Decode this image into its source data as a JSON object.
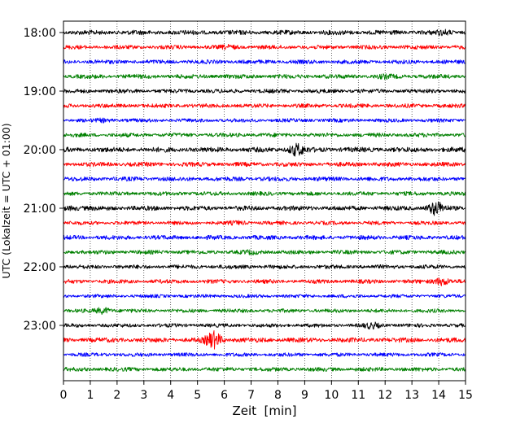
{
  "chart_data": {
    "type": "line",
    "title": "",
    "xlabel": "Zeit  [min]",
    "ylabel": "UTC (Lokalzeit = UTC + 01:00)",
    "xlim": [
      0,
      15
    ],
    "x_ticks": [
      "0",
      "1",
      "2",
      "3",
      "4",
      "5",
      "6",
      "7",
      "8",
      "9",
      "10",
      "11",
      "12",
      "13",
      "14",
      "15"
    ],
    "y_ticks": [
      "18:00",
      "19:00",
      "20:00",
      "21:00",
      "22:00",
      "23:00"
    ],
    "grid": "vertical dotted lines at each minute",
    "trace_interval_min": 15,
    "color_cycle": [
      "#000000",
      "#ff0000",
      "#0000ff",
      "#008000"
    ],
    "series": [
      {
        "start": "18:00",
        "color": "#000000",
        "amplitude": 3.0,
        "events": [
          {
            "t": 14.2,
            "amp": 1.5
          }
        ]
      },
      {
        "start": "18:15",
        "color": "#ff0000",
        "amplitude": 2.6,
        "events": [
          {
            "t": 6.2,
            "amp": 1.2
          }
        ]
      },
      {
        "start": "18:30",
        "color": "#0000ff",
        "amplitude": 2.6,
        "events": []
      },
      {
        "start": "18:45",
        "color": "#008000",
        "amplitude": 2.8,
        "events": [
          {
            "t": 12.0,
            "amp": 1.0
          }
        ]
      },
      {
        "start": "19:00",
        "color": "#000000",
        "amplitude": 2.6,
        "events": []
      },
      {
        "start": "19:15",
        "color": "#ff0000",
        "amplitude": 2.6,
        "events": []
      },
      {
        "start": "19:30",
        "color": "#0000ff",
        "amplitude": 2.4,
        "events": [
          {
            "t": 1.5,
            "amp": 1.0
          }
        ]
      },
      {
        "start": "19:45",
        "color": "#008000",
        "amplitude": 2.6,
        "events": []
      },
      {
        "start": "20:00",
        "color": "#000000",
        "amplitude": 3.2,
        "events": [
          {
            "t": 8.7,
            "amp": 6.0
          }
        ]
      },
      {
        "start": "20:15",
        "color": "#ff0000",
        "amplitude": 2.8,
        "events": []
      },
      {
        "start": "20:30",
        "color": "#0000ff",
        "amplitude": 2.8,
        "events": []
      },
      {
        "start": "20:45",
        "color": "#008000",
        "amplitude": 2.6,
        "events": []
      },
      {
        "start": "21:00",
        "color": "#000000",
        "amplitude": 3.0,
        "events": [
          {
            "t": 0.3,
            "amp": 1.5
          },
          {
            "t": 13.9,
            "amp": 7.0
          }
        ]
      },
      {
        "start": "21:15",
        "color": "#ff0000",
        "amplitude": 2.4,
        "events": [
          {
            "t": 6.5,
            "amp": 1.0
          }
        ]
      },
      {
        "start": "21:30",
        "color": "#0000ff",
        "amplitude": 2.8,
        "events": []
      },
      {
        "start": "21:45",
        "color": "#008000",
        "amplitude": 2.6,
        "events": [
          {
            "t": 7.0,
            "amp": 1.0
          }
        ]
      },
      {
        "start": "22:00",
        "color": "#000000",
        "amplitude": 2.6,
        "events": []
      },
      {
        "start": "22:15",
        "color": "#ff0000",
        "amplitude": 2.6,
        "events": [
          {
            "t": 14.1,
            "amp": 4.0
          }
        ]
      },
      {
        "start": "22:30",
        "color": "#0000ff",
        "amplitude": 2.2,
        "events": []
      },
      {
        "start": "22:45",
        "color": "#008000",
        "amplitude": 2.4,
        "events": [
          {
            "t": 1.5,
            "amp": 3.0
          }
        ]
      },
      {
        "start": "23:00",
        "color": "#000000",
        "amplitude": 2.4,
        "events": [
          {
            "t": 11.5,
            "amp": 2.5
          }
        ]
      },
      {
        "start": "23:15",
        "color": "#ff0000",
        "amplitude": 3.0,
        "events": [
          {
            "t": 5.6,
            "amp": 9.0
          }
        ]
      },
      {
        "start": "23:30",
        "color": "#0000ff",
        "amplitude": 2.4,
        "events": []
      },
      {
        "start": "23:45",
        "color": "#008000",
        "amplitude": 2.6,
        "events": []
      }
    ]
  }
}
